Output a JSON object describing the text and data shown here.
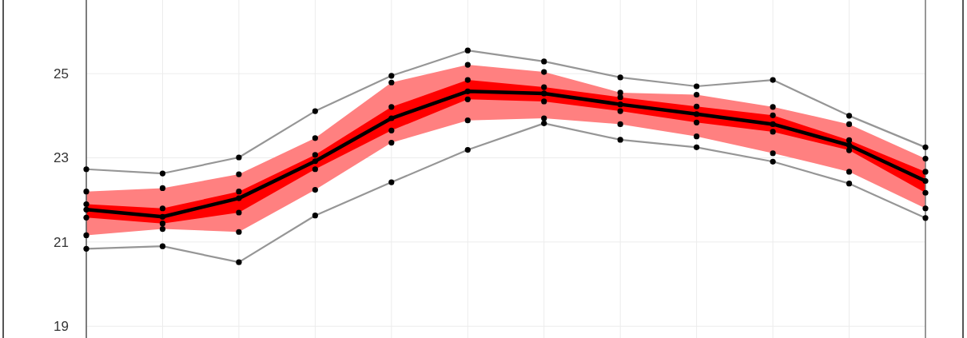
{
  "chart_data": {
    "type": "line",
    "categories": [
      null,
      null,
      null,
      null,
      null,
      null,
      null,
      null,
      null,
      null,
      null,
      null
    ],
    "ylim": [
      18.72,
      26.75
    ],
    "yticks": [
      19,
      21,
      23,
      25
    ],
    "grid": true,
    "marker": "circle",
    "series": [
      {
        "color": "#ff8080",
        "values": [
          null,
          null,
          null,
          null,
          null,
          null,
          null,
          null,
          null,
          null,
          null,
          null
        ],
        "lower": [
          21.16,
          21.31,
          21.24,
          22.24,
          23.36,
          23.89,
          23.94,
          23.8,
          23.51,
          23.11,
          22.67,
          21.8
        ],
        "upper": [
          22.2,
          22.28,
          22.61,
          23.47,
          24.79,
          25.21,
          25.04,
          24.55,
          24.5,
          24.21,
          23.8,
          22.98
        ]
      },
      {
        "color": "#ff0000",
        "values": [
          null,
          null,
          null,
          null,
          null,
          null,
          null,
          null,
          null,
          null,
          null,
          null
        ],
        "lower": [
          21.58,
          21.44,
          21.7,
          22.73,
          23.65,
          24.39,
          24.34,
          24.11,
          23.84,
          23.62,
          23.18,
          22.17
        ],
        "upper": [
          21.9,
          21.8,
          22.2,
          23.07,
          24.21,
          24.85,
          24.68,
          24.44,
          24.22,
          24.01,
          23.42,
          22.67
        ]
      },
      {
        "color": "#969696",
        "values": [
          22.73,
          22.63,
          23.01,
          24.11,
          24.95,
          25.55,
          25.29,
          24.91,
          24.7,
          24.85,
          24.0,
          23.25
        ]
      },
      {
        "color": "#969696",
        "values": [
          20.84,
          20.9,
          20.52,
          21.63,
          22.42,
          23.19,
          23.82,
          23.43,
          23.25,
          22.91,
          22.39,
          21.57
        ]
      },
      {
        "color": "#000000",
        "values": [
          21.77,
          21.6,
          22.04,
          22.92,
          23.94,
          24.58,
          24.53,
          24.27,
          24.04,
          23.8,
          23.3,
          22.45
        ]
      },
      {
        "type": "scatter",
        "color": "#000000",
        "values": [
          22.2,
          22.28,
          22.61,
          23.47,
          24.79,
          25.21,
          25.04,
          24.55,
          24.5,
          24.21,
          23.8,
          22.98
        ]
      },
      {
        "type": "scatter",
        "color": "#000000",
        "values": [
          21.9,
          21.8,
          22.2,
          23.07,
          24.21,
          24.85,
          24.68,
          24.44,
          24.22,
          24.01,
          23.42,
          22.67
        ]
      },
      {
        "type": "scatter",
        "color": "#000000",
        "values": [
          21.58,
          21.44,
          21.7,
          22.73,
          23.65,
          24.39,
          24.34,
          24.11,
          23.84,
          23.62,
          23.18,
          22.17
        ]
      },
      {
        "type": "scatter",
        "color": "#000000",
        "values": [
          21.16,
          21.31,
          21.24,
          22.24,
          23.36,
          23.89,
          23.94,
          23.8,
          23.51,
          23.11,
          22.67,
          21.8
        ]
      }
    ]
  }
}
